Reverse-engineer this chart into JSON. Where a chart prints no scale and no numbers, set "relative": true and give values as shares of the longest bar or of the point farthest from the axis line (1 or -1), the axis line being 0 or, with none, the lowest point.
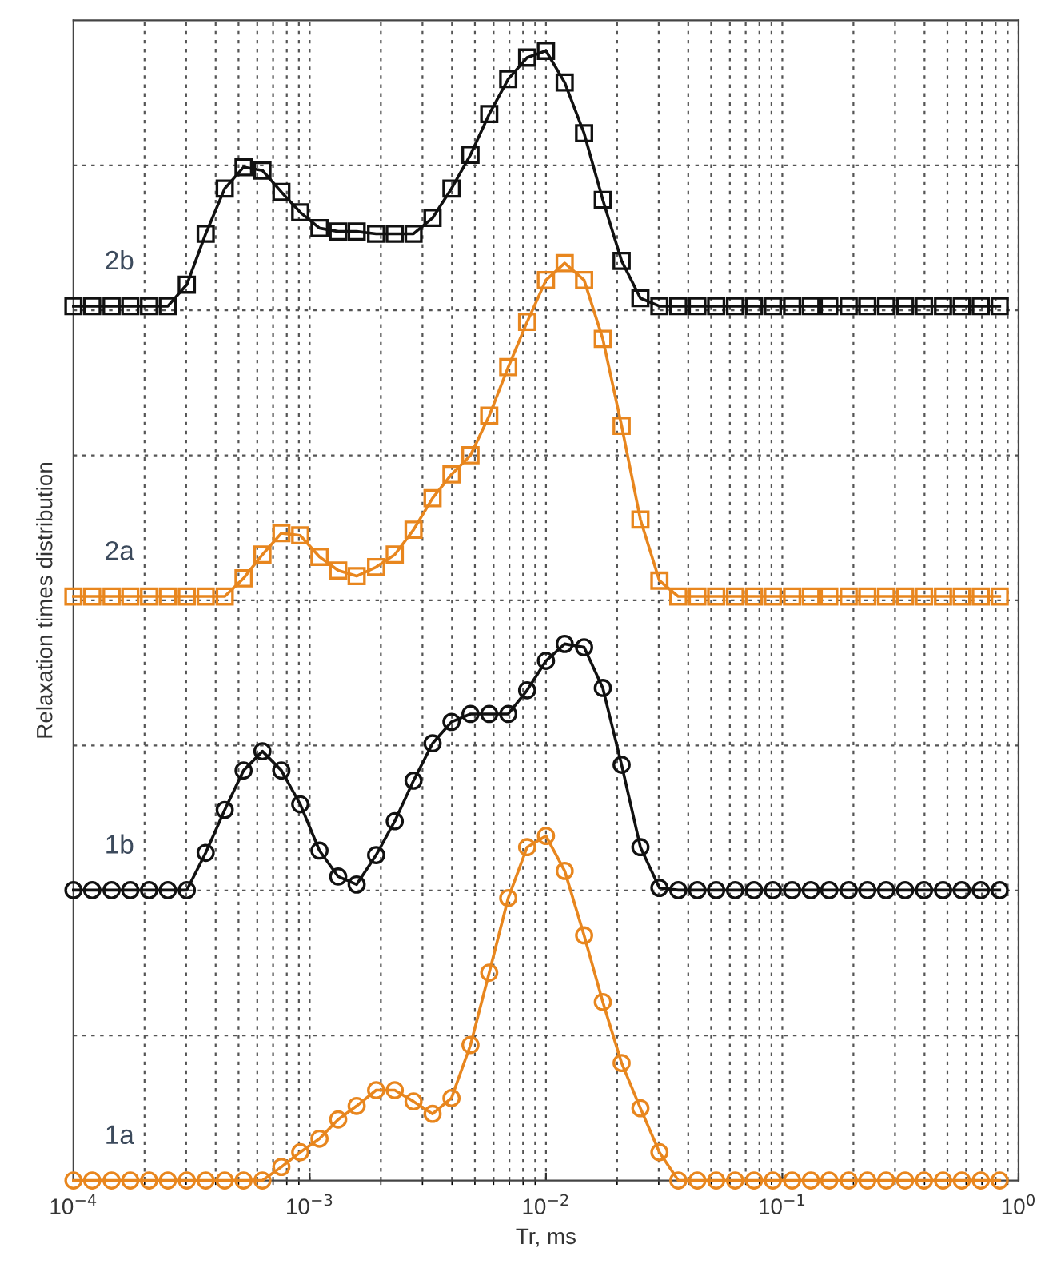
{
  "chart_data": {
    "type": "line",
    "xlabel": "Tr, ms",
    "ylabel": "Relaxation times distribution",
    "log": "x",
    "relative": true,
    "grid": true,
    "legend": false,
    "line_style": "solid",
    "xlim": [
      0.0001,
      1
    ],
    "xticks": [
      {
        "value": 0.0001,
        "label": "10$^{−4}$"
      },
      {
        "value": 0.001,
        "label": "10$^{−3}$"
      },
      {
        "value": 0.01,
        "label": "10$^{−2}$"
      },
      {
        "value": 0.1,
        "label": "10$^{−1}$"
      },
      {
        "value": 1,
        "label": "10$^{0}$"
      }
    ],
    "x": [
      0.0001,
      0.00012,
      0.000145,
      0.000174,
      0.000209,
      0.000251,
      0.000302,
      0.000363,
      0.000437,
      0.000525,
      0.000631,
      0.000759,
      0.000912,
      0.0011,
      0.00132,
      0.00158,
      0.00191,
      0.00229,
      0.00275,
      0.00331,
      0.00398,
      0.00479,
      0.00575,
      0.00692,
      0.00832,
      0.01,
      0.012,
      0.0145,
      0.0174,
      0.0209,
      0.0251,
      0.0302,
      0.0363,
      0.0437,
      0.0525,
      0.0631,
      0.0759,
      0.0912,
      0.11,
      0.132,
      0.158,
      0.191,
      0.229,
      0.275,
      0.331,
      0.398,
      0.479,
      0.575,
      0.692,
      0.832
    ],
    "series": [
      {
        "name": "2b",
        "color": "#111111",
        "marker": "square",
        "values": [
          0.774,
          0.774,
          0.774,
          0.774,
          0.774,
          0.774,
          0.793,
          0.838,
          0.878,
          0.897,
          0.894,
          0.875,
          0.857,
          0.843,
          0.84,
          0.84,
          0.838,
          0.838,
          0.838,
          0.852,
          0.878,
          0.908,
          0.944,
          0.975,
          0.994,
          1.0,
          0.972,
          0.927,
          0.868,
          0.814,
          0.781,
          0.774,
          0.774,
          0.774,
          0.774,
          0.774,
          0.774,
          0.774,
          0.774,
          0.774,
          0.774,
          0.774,
          0.774,
          0.774,
          0.774,
          0.774,
          0.774,
          0.774,
          0.774,
          0.774
        ]
      },
      {
        "name": "2a",
        "color": "#e8861e",
        "marker": "square",
        "values": [
          0.517,
          0.517,
          0.517,
          0.517,
          0.517,
          0.517,
          0.517,
          0.517,
          0.517,
          0.533,
          0.554,
          0.573,
          0.571,
          0.552,
          0.54,
          0.535,
          0.543,
          0.554,
          0.576,
          0.604,
          0.625,
          0.642,
          0.677,
          0.72,
          0.76,
          0.797,
          0.812,
          0.797,
          0.745,
          0.668,
          0.585,
          0.531,
          0.517,
          0.517,
          0.517,
          0.517,
          0.517,
          0.517,
          0.517,
          0.517,
          0.517,
          0.517,
          0.517,
          0.517,
          0.517,
          0.517,
          0.517,
          0.517,
          0.517,
          0.517
        ]
      },
      {
        "name": "1b",
        "color": "#111111",
        "marker": "circle",
        "values": [
          0.257,
          0.257,
          0.257,
          0.257,
          0.257,
          0.257,
          0.257,
          0.29,
          0.328,
          0.363,
          0.38,
          0.363,
          0.333,
          0.292,
          0.269,
          0.262,
          0.288,
          0.318,
          0.354,
          0.387,
          0.406,
          0.413,
          0.413,
          0.413,
          0.434,
          0.46,
          0.475,
          0.472,
          0.436,
          0.368,
          0.295,
          0.259,
          0.257,
          0.257,
          0.257,
          0.257,
          0.257,
          0.257,
          0.257,
          0.257,
          0.257,
          0.257,
          0.257,
          0.257,
          0.257,
          0.257,
          0.257,
          0.257,
          0.257,
          0.257
        ]
      },
      {
        "name": "1a",
        "color": "#e8861e",
        "marker": "circle",
        "values": [
          0,
          0,
          0,
          0,
          0,
          0,
          0,
          0,
          0,
          0,
          0,
          0.012,
          0.025,
          0.037,
          0.054,
          0.066,
          0.08,
          0.08,
          0.07,
          0.059,
          0.073,
          0.12,
          0.184,
          0.25,
          0.295,
          0.305,
          0.274,
          0.217,
          0.158,
          0.104,
          0.064,
          0.025,
          0,
          0,
          0,
          0,
          0,
          0,
          0,
          0,
          0,
          0,
          0,
          0,
          0,
          0,
          0,
          0,
          0,
          0
        ]
      }
    ]
  }
}
